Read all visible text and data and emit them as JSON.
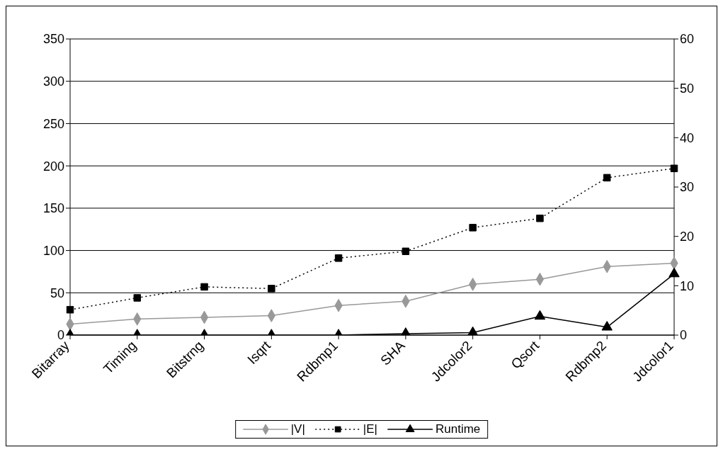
{
  "chart_data": {
    "type": "line",
    "categories": [
      "Bitarray",
      "Timing",
      "Bitstrng",
      "Isqrt",
      "Rdbmp1",
      "SHA",
      "Jdcolor2",
      "Qsort",
      "Rdbmp2",
      "Jdcolor1"
    ],
    "series": [
      {
        "name": "|V|",
        "color": "#999999",
        "marker": "diamond",
        "line_style": "solid",
        "values": [
          13,
          19,
          21,
          23,
          35,
          40,
          60,
          66,
          81,
          85
        ]
      },
      {
        "name": "|E|",
        "color": "#000000",
        "marker": "square",
        "line_style": "dotted",
        "values": [
          30,
          44,
          57,
          55,
          91,
          99,
          127,
          138,
          186,
          197
        ]
      },
      {
        "name": "Runtime",
        "color": "#000000",
        "marker": "triangle",
        "line_style": "solid",
        "axis": "y2",
        "values": [
          0,
          0,
          0,
          0,
          0,
          0.3,
          0.5,
          3.8,
          1.6,
          12.4
        ]
      }
    ],
    "ylim": [
      0,
      350
    ],
    "yticks": [
      0,
      50,
      100,
      150,
      200,
      250,
      300,
      350
    ],
    "y2lim": [
      0,
      60
    ],
    "y2ticks": [
      0,
      10,
      20,
      30,
      40,
      50,
      60
    ],
    "grid": "y",
    "legend": "bottom"
  }
}
